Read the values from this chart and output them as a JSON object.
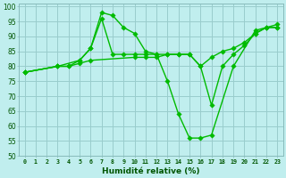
{
  "xlabel": "Humidité relative (%)",
  "bg_color": "#c0eeee",
  "grid_color": "#99cccc",
  "line_color": "#00bb00",
  "xlim": [
    -0.5,
    23.5
  ],
  "ylim": [
    50,
    101
  ],
  "yticks": [
    50,
    55,
    60,
    65,
    70,
    75,
    80,
    85,
    90,
    95,
    100
  ],
  "xticks": [
    0,
    1,
    2,
    3,
    4,
    5,
    6,
    7,
    8,
    9,
    10,
    11,
    12,
    13,
    14,
    15,
    16,
    17,
    18,
    19,
    20,
    21,
    22,
    23
  ],
  "line1_x": [
    0,
    3,
    4,
    5,
    6,
    10,
    11,
    12,
    13,
    14,
    15,
    16,
    17,
    18,
    19,
    20,
    21,
    22,
    23
  ],
  "line1_y": [
    78,
    80,
    80,
    81,
    82,
    83,
    83,
    83,
    84,
    84,
    84,
    80,
    83,
    85,
    86,
    88,
    91,
    93,
    93
  ],
  "line2_x": [
    0,
    3,
    5,
    6,
    7,
    8,
    9,
    10,
    11,
    12,
    13,
    14,
    15,
    16,
    17,
    19,
    21,
    22,
    23
  ],
  "line2_y": [
    78,
    80,
    82,
    86,
    98,
    97,
    93,
    91,
    85,
    84,
    75,
    64,
    56,
    56,
    57,
    80,
    92,
    93,
    94
  ],
  "line3_x": [
    0,
    3,
    4,
    5,
    6,
    7,
    8,
    9,
    10,
    11,
    12,
    13,
    14,
    15,
    16,
    17,
    18,
    19,
    20,
    21,
    22,
    23
  ],
  "line3_y": [
    78,
    80,
    80,
    82,
    86,
    96,
    84,
    84,
    84,
    84,
    84,
    84,
    84,
    84,
    80,
    67,
    80,
    84,
    87,
    91,
    93,
    93
  ]
}
